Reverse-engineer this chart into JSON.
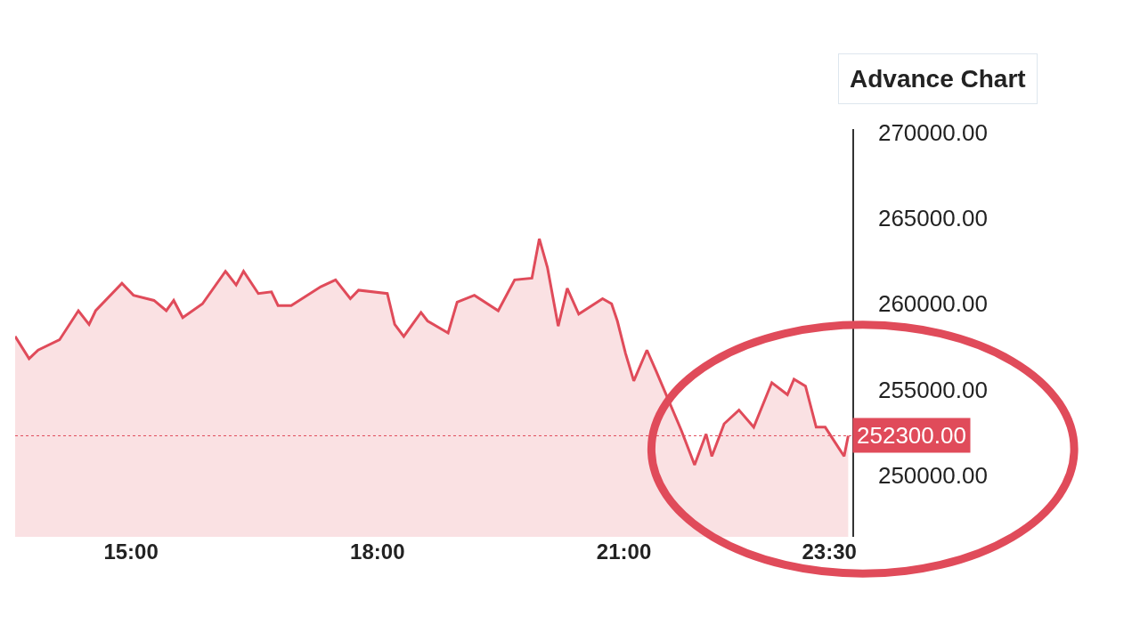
{
  "chart_data": {
    "type": "area",
    "color": "#e04b5a",
    "x": [
      13.59,
      13.76,
      13.87,
      14.13,
      14.36,
      14.49,
      14.57,
      14.89,
      15.03,
      15.28,
      15.43,
      15.52,
      15.63,
      15.87,
      16.15,
      16.28,
      16.37,
      16.55,
      16.71,
      16.79,
      16.95,
      17.31,
      17.49,
      17.67,
      17.77,
      18.12,
      18.21,
      18.32,
      18.53,
      18.61,
      18.86,
      18.97,
      19.18,
      19.47,
      19.67,
      19.88,
      19.97,
      20.07,
      20.2,
      20.31,
      20.45,
      20.74,
      20.85,
      20.92,
      21.02,
      21.12,
      21.28,
      21.39,
      21.7,
      21.86,
      22.0,
      22.07,
      22.22,
      22.4,
      22.58,
      22.8,
      22.99,
      23.07,
      23.21,
      23.34,
      23.45,
      23.68,
      23.73
    ],
    "values": [
      258100,
      256800,
      257300,
      257900,
      259600,
      258800,
      259600,
      261200,
      260500,
      260200,
      259600,
      260200,
      259200,
      260000,
      261900,
      261100,
      261900,
      260600,
      260700,
      259900,
      259900,
      261000,
      261400,
      260300,
      260800,
      260600,
      258800,
      258100,
      259500,
      259000,
      258300,
      260100,
      260500,
      259600,
      261400,
      261500,
      263800,
      262100,
      258700,
      260900,
      259400,
      260300,
      260000,
      259000,
      257100,
      255500,
      257300,
      256100,
      252600,
      250600,
      252400,
      251100,
      253000,
      253800,
      252800,
      255400,
      254700,
      255600,
      255200,
      252800,
      252800,
      251100,
      252300
    ],
    "xlim": [
      13.59,
      23.78
    ],
    "xticks": [
      {
        "value": 15,
        "label": "15:00"
      },
      {
        "value": 18,
        "label": "18:00"
      },
      {
        "value": 21,
        "label": "21:00"
      },
      {
        "value": 23.5,
        "label": "23:30"
      }
    ],
    "ylim": [
      246400,
      270200
    ],
    "yticks": [
      {
        "value": 250000,
        "label": "250000.00"
      },
      {
        "value": 255000,
        "label": "255000.00"
      },
      {
        "value": 260000,
        "label": "260000.00"
      },
      {
        "value": 265000,
        "label": "265000.00"
      },
      {
        "value": 270000,
        "label": "270000.00"
      }
    ],
    "ref_lines": [
      {
        "axis": "y",
        "value": 252300,
        "label": "252300.00",
        "color": "#e04b5a",
        "line_style": "dotted"
      }
    ],
    "annotations": [
      "Advance Chart"
    ]
  }
}
